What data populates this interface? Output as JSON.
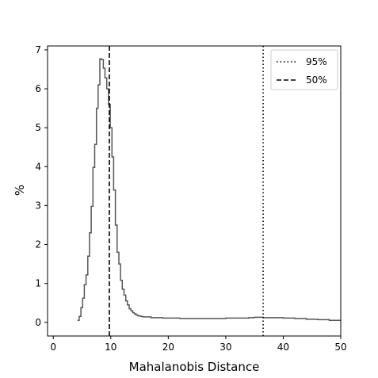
{
  "chart_data": {
    "type": "step",
    "xlabel": "Mahalanobis Distance",
    "ylabel": "%",
    "xlim": [
      -1,
      50
    ],
    "ylim": [
      -0.35,
      7.1
    ],
    "xticks": [
      0,
      10,
      20,
      30,
      40,
      50
    ],
    "yticks": [
      0,
      1,
      2,
      3,
      4,
      5,
      6,
      7
    ],
    "legend_position": "top-right",
    "series": [
      {
        "name": "",
        "color": "#555555",
        "x": [
          4.2,
          4.5,
          4.8,
          5.1,
          5.4,
          5.7,
          6.0,
          6.3,
          6.6,
          6.9,
          7.2,
          7.5,
          7.8,
          8.1,
          8.4,
          8.7,
          9.0,
          9.3,
          9.6,
          9.9,
          10.2,
          10.5,
          10.8,
          11.1,
          11.4,
          11.7,
          12.0,
          12.3,
          12.6,
          12.9,
          13.2,
          13.5,
          13.8,
          14.1,
          14.4,
          14.7,
          15.0,
          15.3,
          15.6,
          16.0,
          17.0,
          18.0,
          19.0,
          20.0,
          22.0,
          24.0,
          26.0,
          28.0,
          30.0,
          32.0,
          34.0,
          35.0,
          36.5,
          38.0,
          40.0,
          42.0,
          44.0,
          46.0,
          48.0,
          50.0
        ],
        "y": [
          0.05,
          0.15,
          0.38,
          0.62,
          0.97,
          1.22,
          1.7,
          2.3,
          2.98,
          3.98,
          4.57,
          5.5,
          6.1,
          6.77,
          6.75,
          6.53,
          6.28,
          6.0,
          5.6,
          5.0,
          4.25,
          3.4,
          2.5,
          1.8,
          1.5,
          1.08,
          0.85,
          0.7,
          0.55,
          0.45,
          0.35,
          0.3,
          0.25,
          0.22,
          0.19,
          0.17,
          0.16,
          0.15,
          0.14,
          0.14,
          0.12,
          0.12,
          0.11,
          0.11,
          0.1,
          0.1,
          0.1,
          0.1,
          0.11,
          0.11,
          0.12,
          0.13,
          0.12,
          0.12,
          0.11,
          0.1,
          0.08,
          0.07,
          0.05,
          0.05
        ]
      }
    ],
    "vlines": [
      {
        "label": "95%",
        "x": 36.5,
        "style": "dotted",
        "color": "#000000"
      },
      {
        "label": "50%",
        "x": 9.75,
        "style": "dashed",
        "color": "#000000"
      }
    ]
  }
}
